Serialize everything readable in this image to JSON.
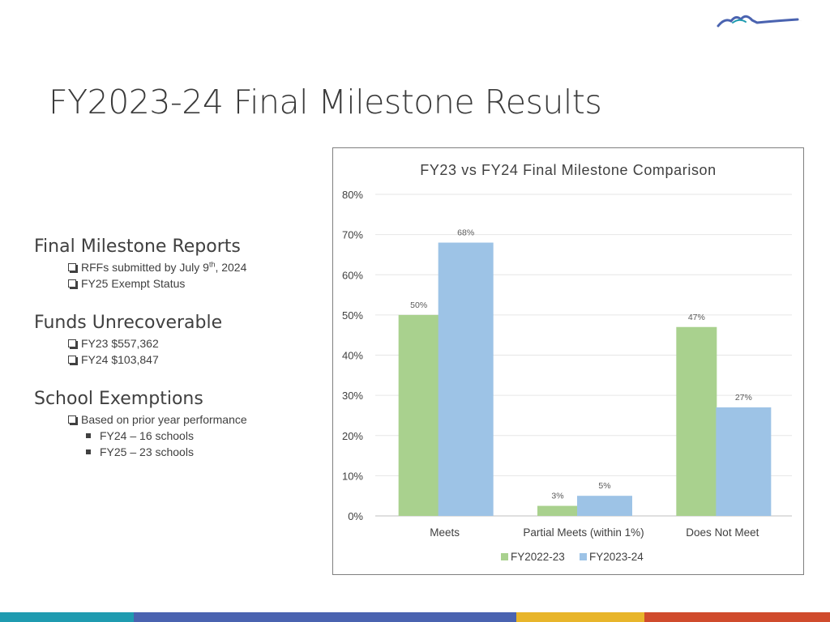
{
  "slide": {
    "title": "FY2023-24 Final Milestone Results",
    "logo": "mountain-logo"
  },
  "notes": {
    "sections": [
      {
        "title": "Final Milestone Reports",
        "items": [
          {
            "text_before": "RFFs submitted by July 9",
            "sup": "th",
            "text_after": ", 2024"
          },
          {
            "text": "FY25 Exempt Status"
          }
        ]
      },
      {
        "title": "Funds Unrecoverable",
        "items": [
          {
            "text": "FY23 $557,362"
          },
          {
            "text": "FY24 $103,847"
          }
        ]
      },
      {
        "title": "School Exemptions",
        "items": [
          {
            "text": "Based on prior year performance"
          }
        ],
        "subitems": [
          {
            "text": "FY24 – 16 schools"
          },
          {
            "text": "FY25 – 23 schools"
          }
        ]
      }
    ]
  },
  "chart_data": {
    "type": "bar",
    "title": "FY23 vs FY24 Final Milestone Comparison",
    "categories": [
      "Meets",
      "Partial Meets (within 1%)",
      "Does Not Meet"
    ],
    "series": [
      {
        "name": "FY2022-23",
        "values": [
          50,
          2.5,
          47
        ],
        "labels": [
          "50%",
          "3%",
          "47%"
        ],
        "color": "#a9d18e"
      },
      {
        "name": "FY2023-24",
        "values": [
          68,
          5,
          27
        ],
        "labels": [
          "68%",
          "5%",
          "27%"
        ],
        "color": "#9dc3e6"
      }
    ],
    "ylim": [
      0,
      80
    ],
    "yticks": [
      0,
      10,
      20,
      30,
      40,
      50,
      60,
      70,
      80
    ],
    "ytick_labels": [
      "0%",
      "10%",
      "20%",
      "30%",
      "40%",
      "50%",
      "60%",
      "70%",
      "80%"
    ],
    "grid": true,
    "legend": "bottom"
  },
  "colors": {
    "bottom_bar": [
      "#1f9bb0",
      "#4a63b0",
      "#e8b52a",
      "#d04b2c"
    ]
  }
}
